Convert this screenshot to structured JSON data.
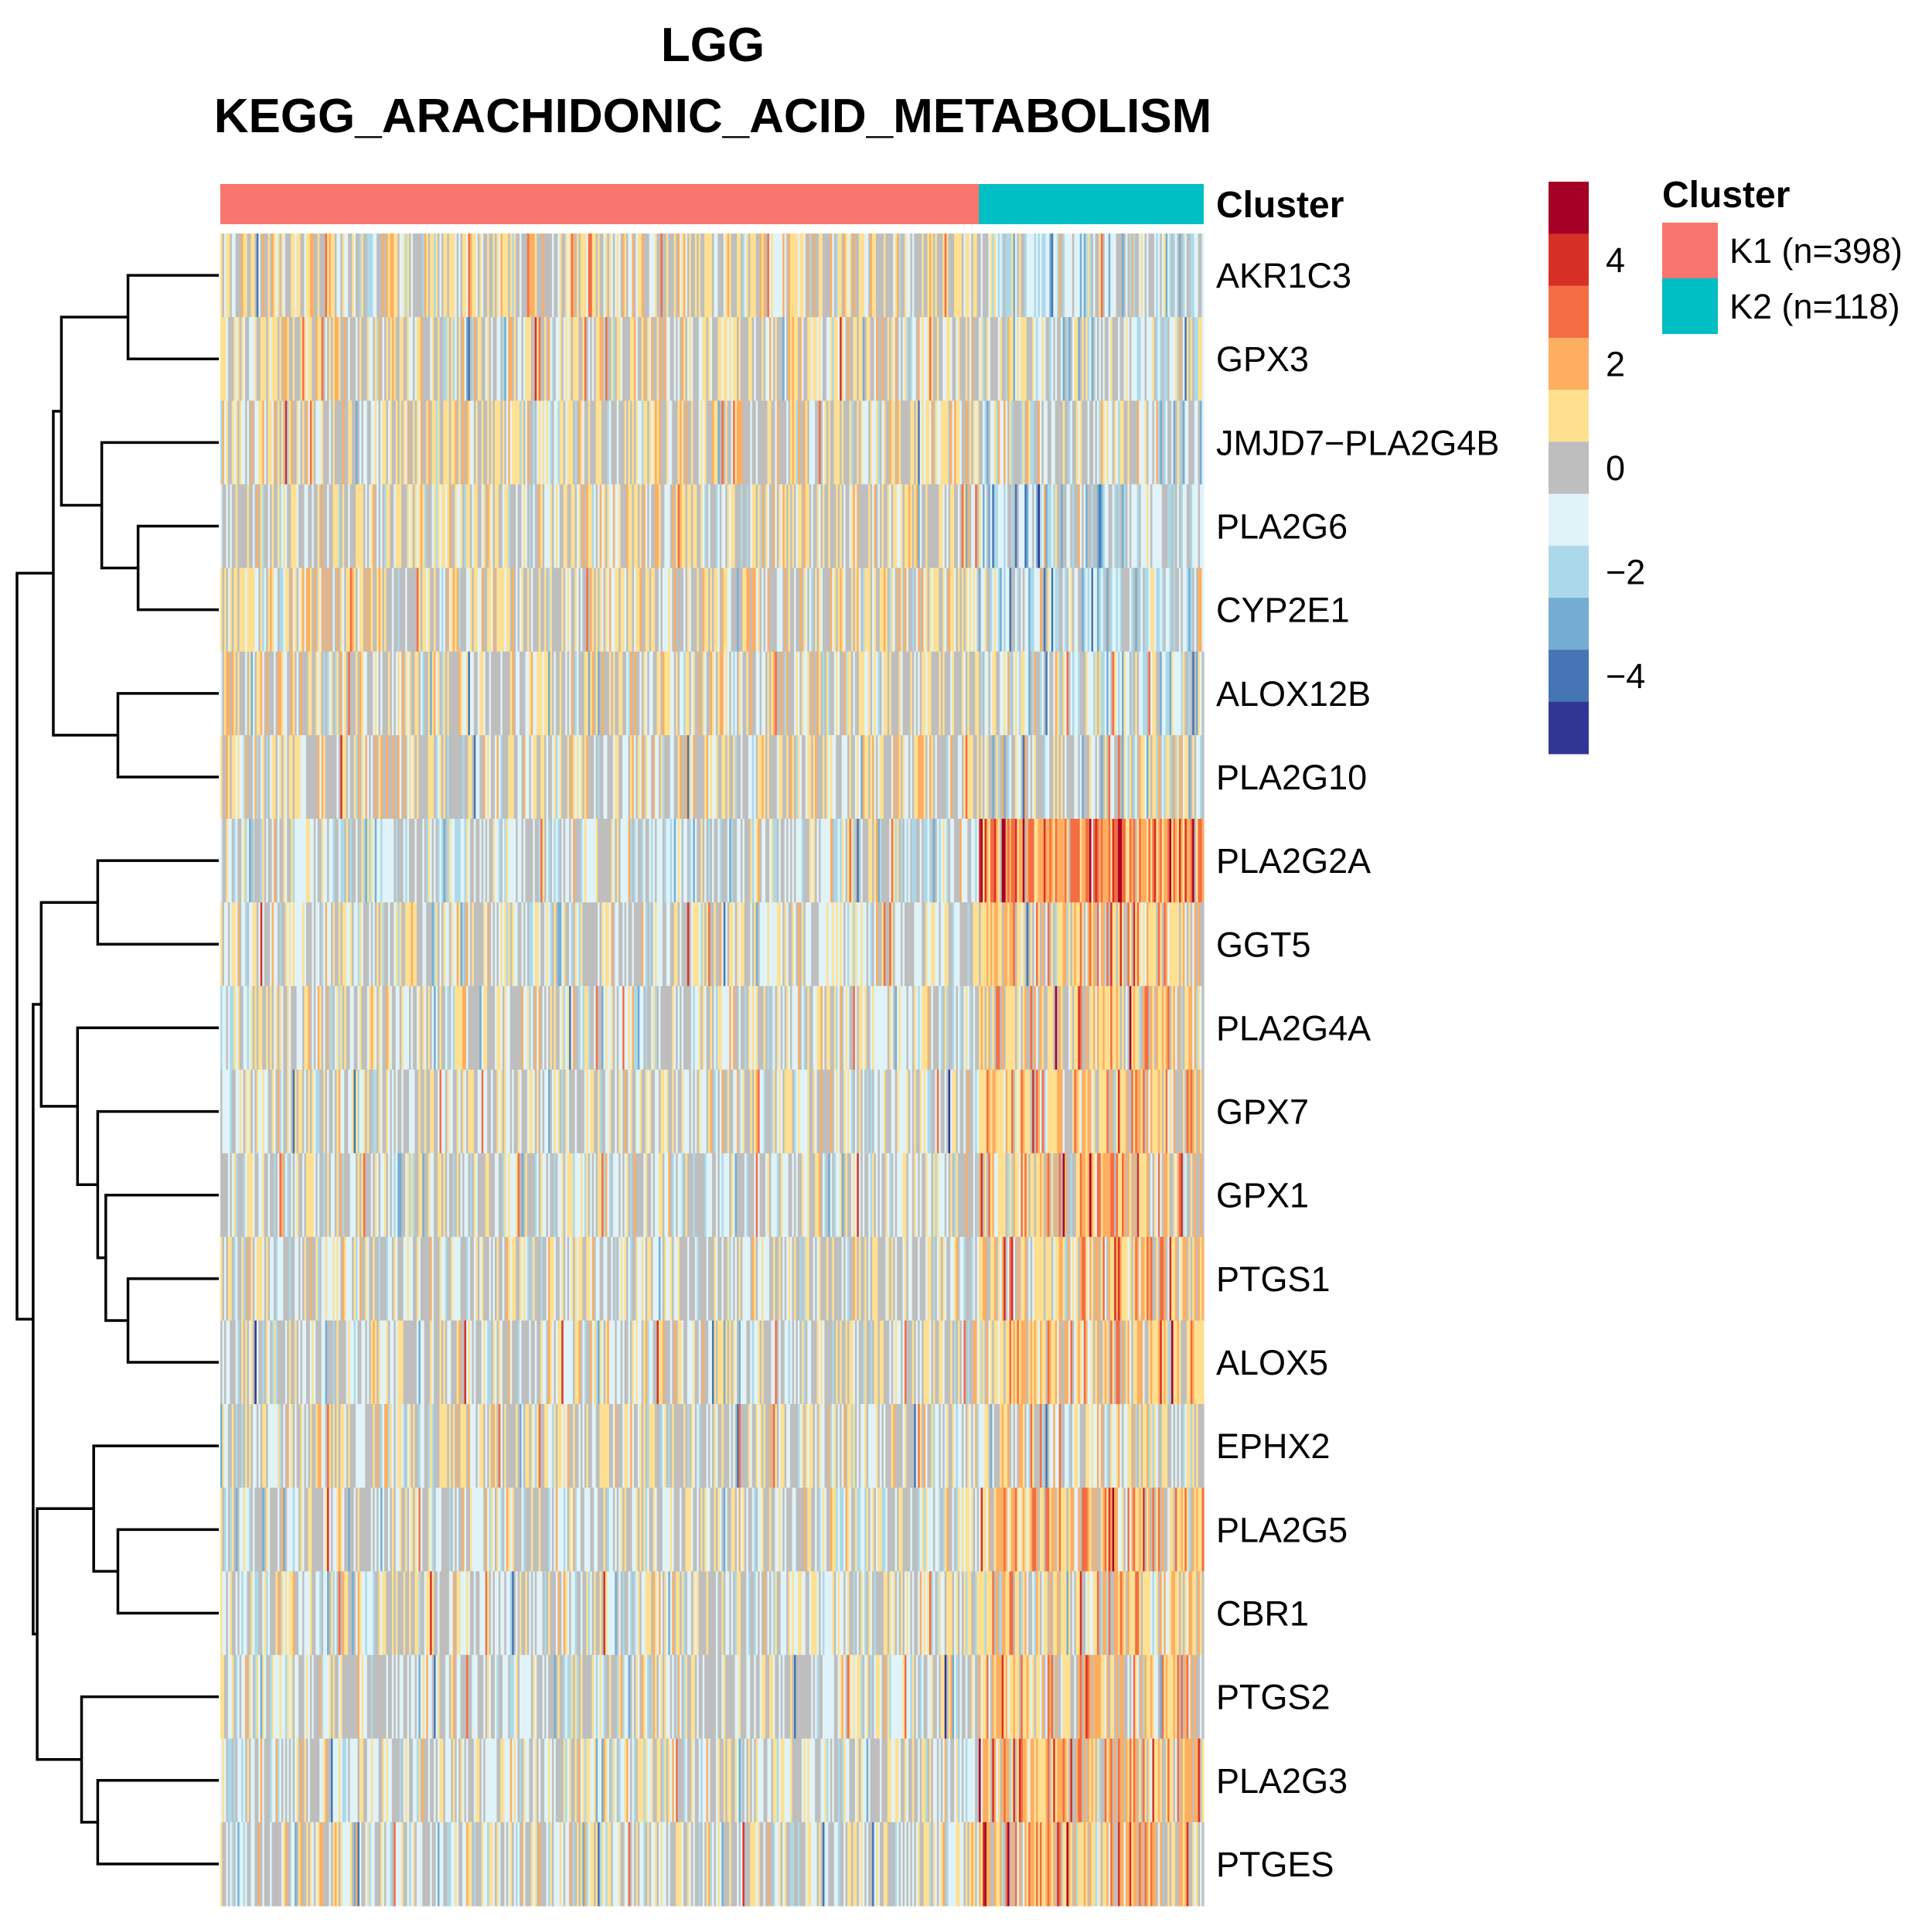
{
  "chart_data": {
    "type": "heatmap",
    "title_line1": "LGG",
    "title_line2": "KEGG_ARACHIDONIC_ACID_METABOLISM",
    "annotation_track_label": "Cluster",
    "clusters": [
      {
        "label": "K1 (n=398)",
        "name": "K1",
        "n": 398,
        "color": "#F8766D"
      },
      {
        "label": "K2 (n=118)",
        "name": "K2",
        "n": 118,
        "color": "#00BFC4"
      }
    ],
    "cluster_legend_title": "Cluster",
    "genes": [
      "AKR1C3",
      "GPX3",
      "JMJD7−PLA2G4B",
      "PLA2G6",
      "CYP2E1",
      "ALOX12B",
      "PLA2G10",
      "PLA2G2A",
      "GGT5",
      "PLA2G4A",
      "GPX7",
      "GPX1",
      "PTGS1",
      "ALOX5",
      "EPHX2",
      "PLA2G5",
      "CBR1",
      "PTGS2",
      "PLA2G3",
      "PTGES"
    ],
    "k2_trend": [
      -1,
      -0.7,
      -0.5,
      -1.1,
      -1.2,
      -0.5,
      -0.4,
      2.4,
      0.9,
      0.8,
      1.0,
      0.9,
      1.0,
      0.9,
      0.2,
      1.2,
      0.8,
      1.1,
      1.3,
      1.0
    ],
    "k1_trend": [
      0.35,
      0.25,
      0.2,
      0.25,
      0.25,
      0.15,
      0.1,
      -0.55,
      -0.2,
      -0.2,
      -0.2,
      -0.2,
      -0.2,
      -0.2,
      -0.05,
      -0.25,
      -0.2,
      -0.25,
      -0.3,
      -0.25
    ],
    "color_scale": {
      "breaks": [
        -6,
        -5,
        -4,
        -3,
        -2,
        -1,
        0,
        1,
        2,
        3,
        4,
        5,
        6
      ],
      "colors": [
        "#313695",
        "#4575B4",
        "#74ADD1",
        "#ABD9E9",
        "#E0F3F8",
        "#BEBEBE",
        "#FEE090",
        "#FDAE61",
        "#F46D43",
        "#D73027",
        "#A50026"
      ],
      "ticks": [
        4,
        2,
        0,
        -2,
        -4
      ],
      "tick_labels": [
        "4",
        "2",
        "0",
        "−2",
        "−4"
      ]
    },
    "row_dendrogram": {
      "merges": [
        [
          0,
          1,
          0.45
        ],
        [
          3,
          4,
          0.4
        ],
        [
          2,
          -2,
          0.58
        ],
        [
          5,
          6,
          0.5
        ],
        [
          -1,
          -3,
          0.78
        ],
        [
          -5,
          -4,
          0.82
        ],
        [
          7,
          8,
          0.6
        ],
        [
          12,
          13,
          0.45
        ],
        [
          11,
          -8,
          0.56
        ],
        [
          10,
          -9,
          0.6
        ],
        [
          9,
          -10,
          0.7
        ],
        [
          -7,
          -11,
          0.88
        ],
        [
          15,
          16,
          0.5
        ],
        [
          14,
          -13,
          0.62
        ],
        [
          18,
          19,
          0.6
        ],
        [
          17,
          -15,
          0.68
        ],
        [
          -14,
          -16,
          0.9
        ],
        [
          -12,
          -17,
          0.92
        ],
        [
          -6,
          -18,
          1.0
        ]
      ]
    }
  }
}
